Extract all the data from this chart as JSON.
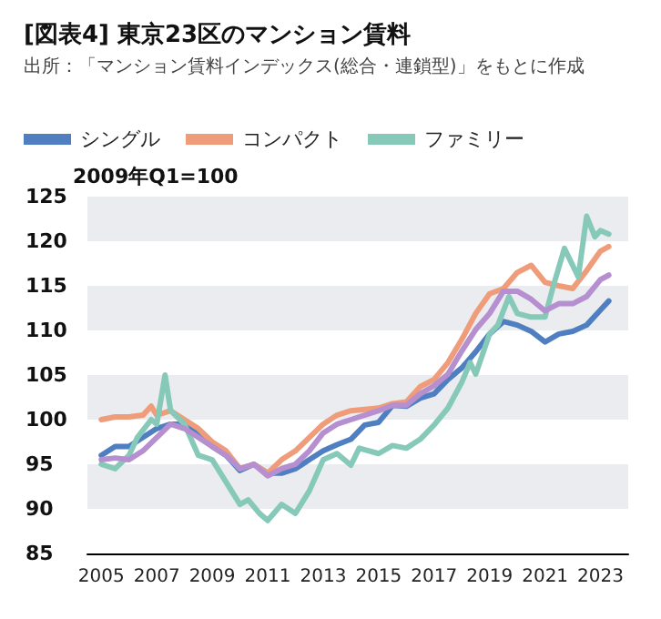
{
  "chart_data": {
    "type": "line",
    "title": "[図表4] 東京23区のマンション賃料",
    "subtitle": "出所：「マンション賃料インデックス(総合・連鎖型)」をもとに作成",
    "ylabel": "2009年Q1=100",
    "xlim": [
      2004.5,
      2024
    ],
    "xticks": [
      2005,
      2007,
      2009,
      2011,
      2013,
      2015,
      2017,
      2019,
      2021,
      2023
    ],
    "ylim": [
      85,
      125
    ],
    "yticks": [
      85,
      90,
      95,
      100,
      105,
      110,
      115,
      120,
      125
    ],
    "grid": false,
    "legend": "top left",
    "marker": "none",
    "line_style": "solid",
    "bands": [
      {
        "axis": "y",
        "from": 90,
        "to": 95,
        "color": "#eaecef"
      },
      {
        "axis": "y",
        "from": 100,
        "to": 105,
        "color": "#eaecef"
      },
      {
        "axis": "y",
        "from": 110,
        "to": 115,
        "color": "#eaecef"
      },
      {
        "axis": "y",
        "from": 120,
        "to": 125,
        "color": "#eaecef"
      }
    ],
    "series": [
      {
        "name": "シングル",
        "color": "#4f7fc0",
        "x": [
          2005,
          2005.5,
          2006,
          2006.5,
          2007,
          2007.5,
          2008,
          2008.5,
          2009,
          2009.5,
          2010,
          2010.5,
          2011,
          2011.5,
          2012,
          2012.5,
          2013,
          2013.5,
          2014,
          2014.5,
          2015,
          2015.5,
          2016,
          2016.5,
          2017,
          2017.5,
          2018,
          2018.5,
          2019,
          2019.5,
          2020,
          2020.5,
          2021,
          2021.5,
          2022,
          2022.5,
          2023,
          2023.3
        ],
        "values": [
          96,
          97,
          97,
          98,
          99,
          99.5,
          99.5,
          98.5,
          97,
          96,
          94.3,
          95,
          94,
          94,
          94.5,
          95.5,
          96.5,
          97.2,
          97.8,
          99.4,
          99.7,
          101.6,
          101.5,
          102.4,
          102.9,
          104.5,
          105.8,
          107.6,
          109.6,
          111,
          110.6,
          109.9,
          108.7,
          109.6,
          109.9,
          110.6,
          112.3,
          113.3
        ]
      },
      {
        "name": "コンパクト",
        "color": "#ef9c7a",
        "x": [
          2005,
          2005.5,
          2006,
          2006.5,
          2006.8,
          2007,
          2007.5,
          2008,
          2008.5,
          2009,
          2009.5,
          2010,
          2010.5,
          2011,
          2011.5,
          2012,
          2012.5,
          2013,
          2013.5,
          2014,
          2015,
          2015.5,
          2016,
          2016.5,
          2017,
          2017.5,
          2018,
          2018.5,
          2019,
          2019.5,
          2020,
          2020.5,
          2021,
          2021.5,
          2022,
          2022.5,
          2023,
          2023.3
        ],
        "values": [
          100,
          100.3,
          100.3,
          100.5,
          101.5,
          100.5,
          101,
          100,
          99,
          97.5,
          96.5,
          94.5,
          95,
          94,
          95.5,
          96.5,
          98,
          99.5,
          100.5,
          101,
          101.3,
          101.8,
          102,
          103.7,
          104.5,
          106.4,
          109,
          111.9,
          114.1,
          114.7,
          116.5,
          117.3,
          115.4,
          115,
          114.7,
          116.7,
          118.9,
          119.4
        ]
      },
      {
        "name": "ファミリー",
        "color": "#86c9b9",
        "x": [
          2005,
          2005.5,
          2006,
          2006.3,
          2006.8,
          2007,
          2007.3,
          2007.5,
          2008,
          2008.5,
          2009,
          2009.5,
          2010,
          2010.3,
          2010.7,
          2011,
          2011.5,
          2012,
          2012.5,
          2013,
          2013.5,
          2014,
          2014.3,
          2015,
          2015.5,
          2016,
          2016.5,
          2017,
          2017.5,
          2018,
          2018.3,
          2018.5,
          2019,
          2019.3,
          2019.7,
          2020,
          2020.5,
          2021,
          2021.3,
          2021.7,
          2022.2,
          2022.5,
          2022.8,
          2023,
          2023.3
        ],
        "values": [
          95,
          94.5,
          96,
          98,
          100,
          99.5,
          105,
          101,
          99.5,
          96,
          95.5,
          93,
          90.5,
          91,
          89.5,
          88.7,
          90.5,
          89.5,
          92,
          95.5,
          96.2,
          94.9,
          96.8,
          96.2,
          97.1,
          96.8,
          97.8,
          99.4,
          101.3,
          104.2,
          106.4,
          105.1,
          109.6,
          110.6,
          113.8,
          111.9,
          111.5,
          111.5,
          115,
          119.2,
          116,
          122.8,
          120.5,
          121.2,
          120.8
        ]
      },
      {
        "color": "#b58fd0",
        "x": [
          2005,
          2005.5,
          2006,
          2006.5,
          2007,
          2007.5,
          2008,
          2008.5,
          2009,
          2009.5,
          2010,
          2010.5,
          2011,
          2011.5,
          2012,
          2012.5,
          2013,
          2013.5,
          2014,
          2015,
          2015.5,
          2016,
          2016.5,
          2017,
          2017.5,
          2018,
          2018.5,
          2019,
          2019.5,
          2020,
          2020.5,
          2021,
          2021.5,
          2022,
          2022.5,
          2023,
          2023.3
        ],
        "values": [
          95.5,
          95.7,
          95.5,
          96.5,
          98,
          99.5,
          99,
          98,
          97,
          96,
          94.5,
          95,
          93.7,
          94.5,
          95,
          96.5,
          98.5,
          99.5,
          100,
          101,
          101.6,
          101.6,
          102.9,
          103.8,
          105.1,
          107.7,
          110.1,
          111.9,
          114.4,
          114.4,
          113.5,
          112.2,
          113,
          113,
          113.8,
          115.7,
          116.2
        ]
      }
    ]
  }
}
